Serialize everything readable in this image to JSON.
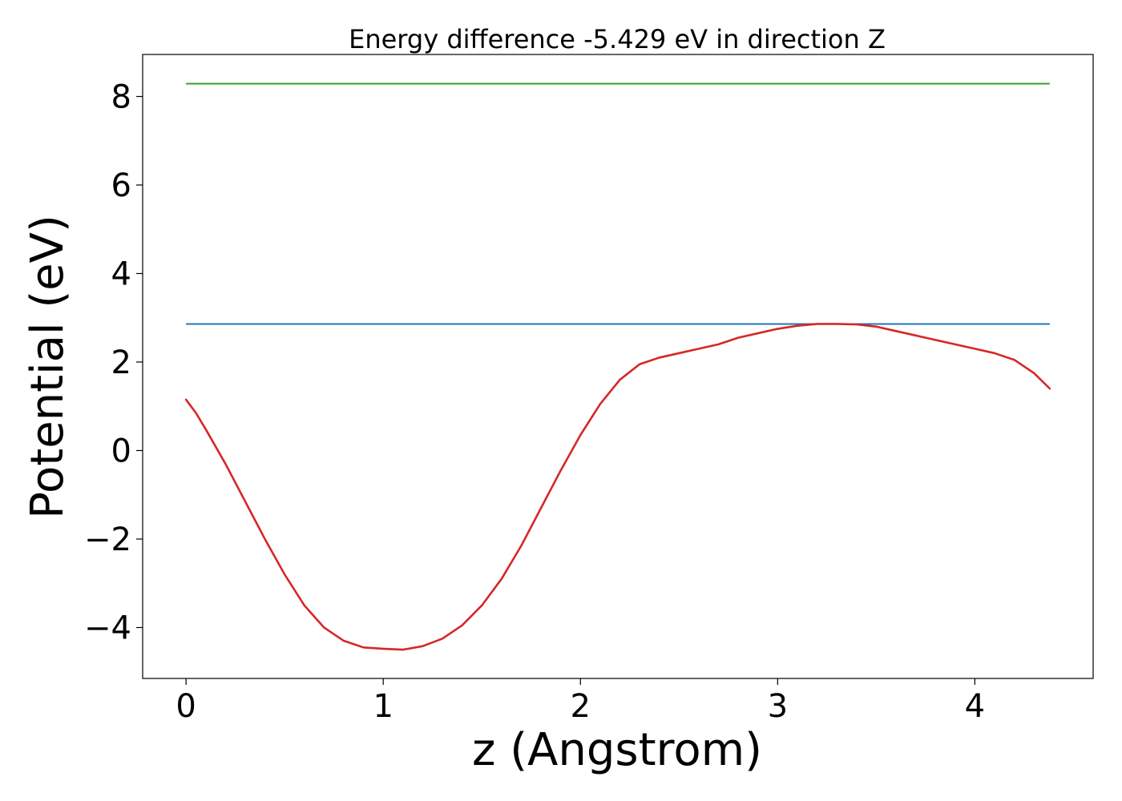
{
  "chart_data": {
    "type": "line",
    "title": "Energy difference -5.429 eV in direction Z",
    "xlabel": "z (Angstrom)",
    "ylabel": "Potential (eV)",
    "xlim": [
      -0.22,
      4.6
    ],
    "ylim": [
      -5.15,
      8.95
    ],
    "xticks": [
      0,
      1,
      2,
      3,
      4
    ],
    "xtick_labels": [
      "0",
      "1",
      "2",
      "3",
      "4"
    ],
    "yticks": [
      -4,
      -2,
      0,
      2,
      4,
      6,
      8
    ],
    "ytick_labels": [
      "−4",
      "−2",
      "0",
      "2",
      "4",
      "6",
      "8"
    ],
    "grid": false,
    "legend": null,
    "series": [
      {
        "kind": "hline",
        "color": "#2ca02c",
        "y": 8.29,
        "x_range": [
          0,
          4.38
        ]
      },
      {
        "kind": "hline",
        "color": "#1f77b4",
        "y": 2.86,
        "x_range": [
          0,
          4.38
        ]
      },
      {
        "kind": "line",
        "color": "#d62728",
        "x": [
          0,
          0.05,
          0.1,
          0.2,
          0.3,
          0.4,
          0.5,
          0.6,
          0.7,
          0.8,
          0.9,
          1.0,
          1.1,
          1.2,
          1.3,
          1.4,
          1.5,
          1.6,
          1.7,
          1.8,
          1.9,
          2.0,
          2.1,
          2.2,
          2.3,
          2.4,
          2.5,
          2.6,
          2.7,
          2.8,
          2.9,
          3.0,
          3.1,
          3.2,
          3.3,
          3.4,
          3.5,
          3.6,
          3.7,
          3.8,
          3.9,
          4.0,
          4.1,
          4.2,
          4.3,
          4.38
        ],
        "y": [
          1.15,
          0.85,
          0.48,
          -0.3,
          -1.15,
          -2.0,
          -2.8,
          -3.5,
          -4.0,
          -4.3,
          -4.45,
          -4.48,
          -4.5,
          -4.42,
          -4.25,
          -3.95,
          -3.5,
          -2.9,
          -2.15,
          -1.3,
          -0.45,
          0.35,
          1.05,
          1.6,
          1.95,
          2.1,
          2.2,
          2.3,
          2.4,
          2.55,
          2.65,
          2.75,
          2.82,
          2.86,
          2.86,
          2.85,
          2.8,
          2.7,
          2.6,
          2.5,
          2.4,
          2.3,
          2.2,
          2.05,
          1.75,
          1.4
        ]
      }
    ]
  }
}
